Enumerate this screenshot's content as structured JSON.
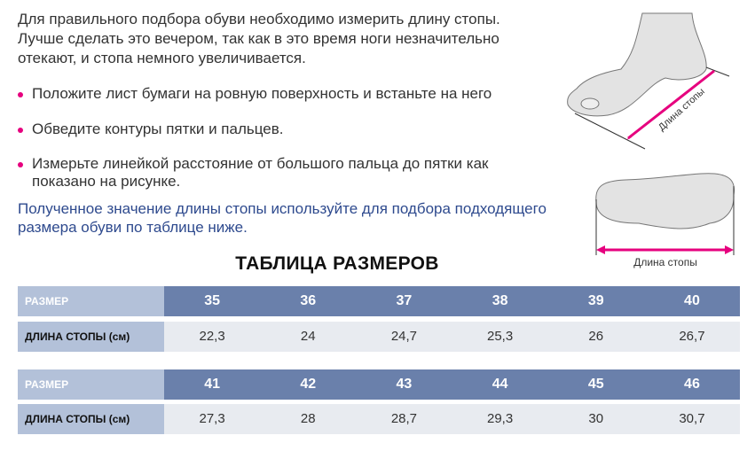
{
  "intro": "Для правильного подбора обуви необходимо измерить длину стопы. Лучше сделать это вечером, так как в это время ноги незначительно отекают, и стопа немного увеличивается.",
  "bullets": [
    "Положите лист бумаги на ровную поверхность и встаньте на него",
    "Обведите контуры пятки и пальцев.",
    "Измерьте линейкой расстояние от большого пальца до пятки как показано на рисунке."
  ],
  "note": "Полученное значение длины стопы используйте для подбора подходящего размера обуви по таблице ниже.",
  "illustration": {
    "side_label": "Длина стопы",
    "sole_label": "Длина стопы",
    "accent": "#e6007e"
  },
  "table": {
    "title": "ТАБЛИЦА РАЗМЕРОВ",
    "blocks": [
      {
        "size_label": "РАЗМЕР",
        "length_label": "ДЛИНА СТОПЫ (см)",
        "sizes": [
          "35",
          "36",
          "37",
          "38",
          "39",
          "40"
        ],
        "lengths": [
          "22,3",
          "24",
          "24,7",
          "25,3",
          "26",
          "26,7"
        ]
      },
      {
        "size_label": "РАЗМЕР",
        "length_label": "ДЛИНА СТОПЫ (см)",
        "sizes": [
          "41",
          "42",
          "43",
          "44",
          "45",
          "46"
        ],
        "lengths": [
          "27,3",
          "28",
          "28,7",
          "29,3",
          "30",
          "30,7"
        ]
      }
    ]
  }
}
